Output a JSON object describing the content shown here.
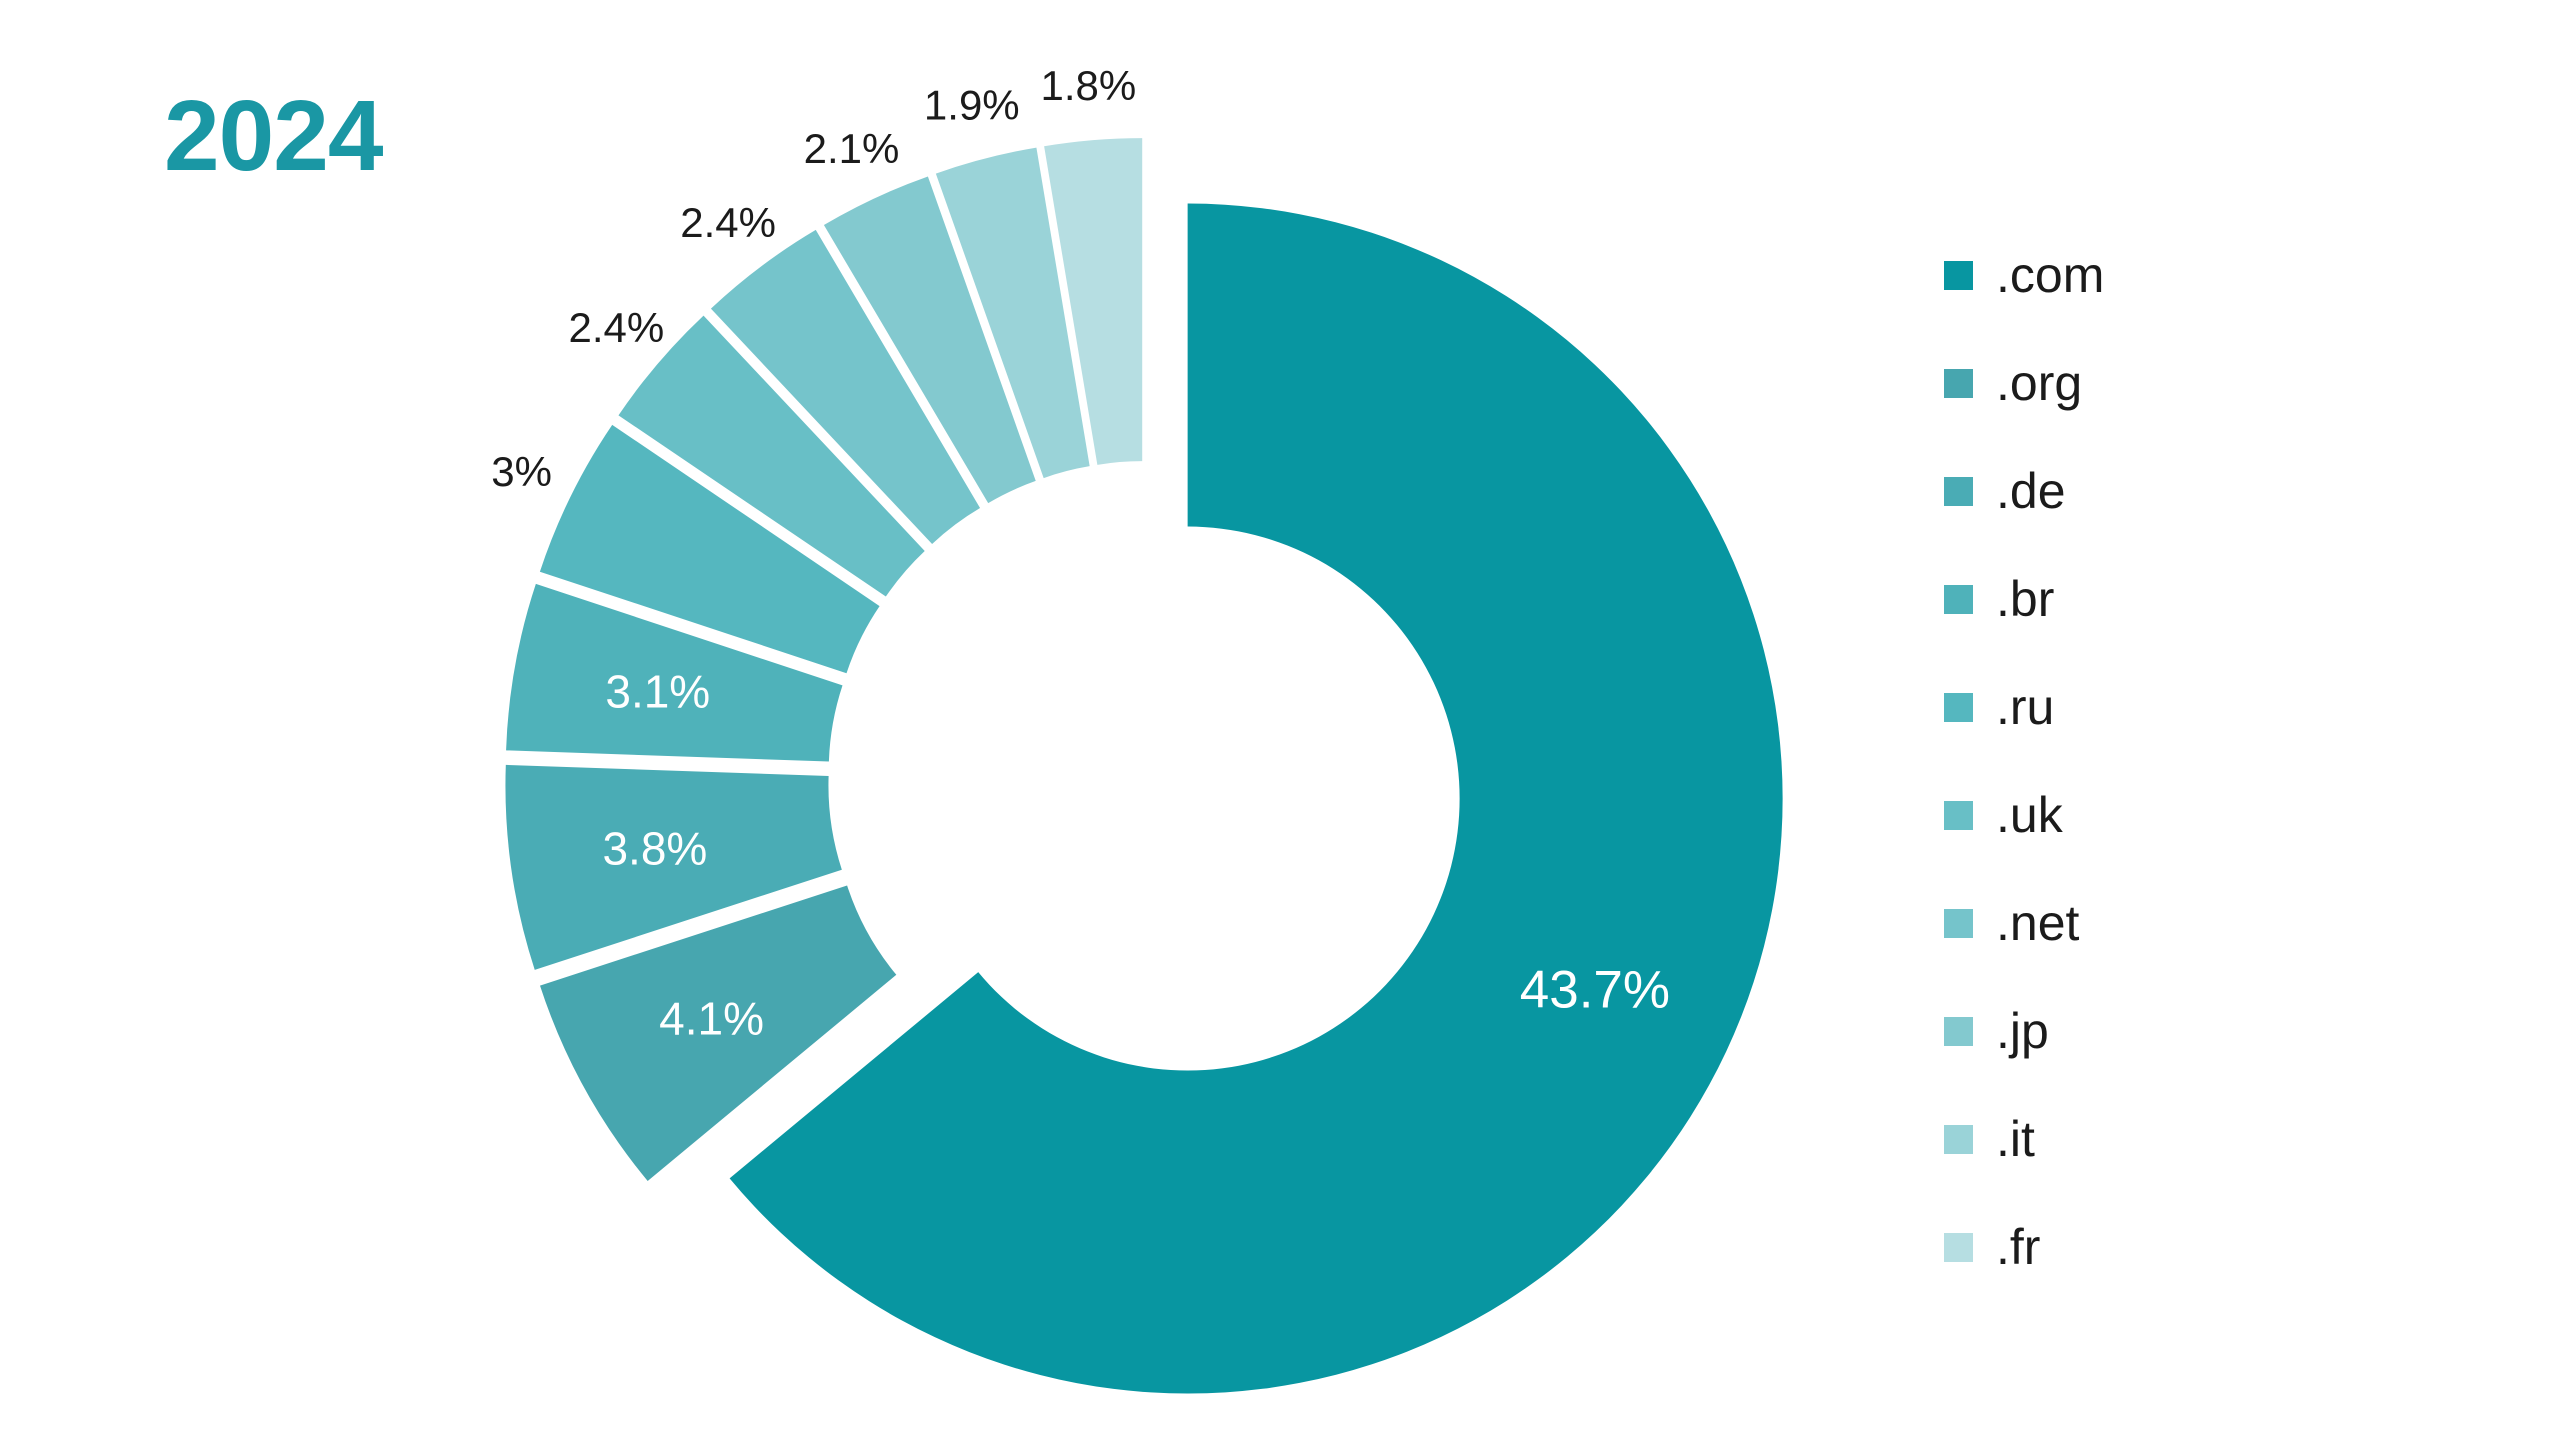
{
  "title": {
    "text": "2024",
    "color": "#1a97a4"
  },
  "page": {
    "background": "#ffffff"
  },
  "chart_data": {
    "type": "pie",
    "subtype": "exploded-donut",
    "title": "2024",
    "unit": "%",
    "categories": [
      ".com",
      ".org",
      ".de",
      ".br",
      ".ru",
      ".uk",
      ".net",
      ".jp",
      ".it",
      ".fr"
    ],
    "values": [
      43.7,
      4.1,
      3.8,
      3.1,
      3.0,
      2.4,
      2.4,
      2.1,
      1.9,
      1.8
    ],
    "labels": [
      "43.7%",
      "4.1%",
      "3.8%",
      "3.1%",
      "3%",
      "2.4%",
      "2.4%",
      "2.1%",
      "1.9%",
      "1.8%"
    ],
    "colors": [
      "#0896a1",
      "#47a6af",
      "#4aacb5",
      "#4fb2ba",
      "#55b7bf",
      "#68bfc6",
      "#75c4cb",
      "#83c9cf",
      "#9ad3d8",
      "#b6dee2"
    ],
    "label_inside": [
      true,
      true,
      true,
      true,
      false,
      false,
      false,
      false,
      false,
      false
    ],
    "inside_label_color": "#ffffff",
    "outside_label_color": "#1b1b1b",
    "start_angle_deg": 0,
    "direction": "clockwise",
    "values_normalized_to_360": true,
    "grid": false,
    "legend_position": "right"
  }
}
